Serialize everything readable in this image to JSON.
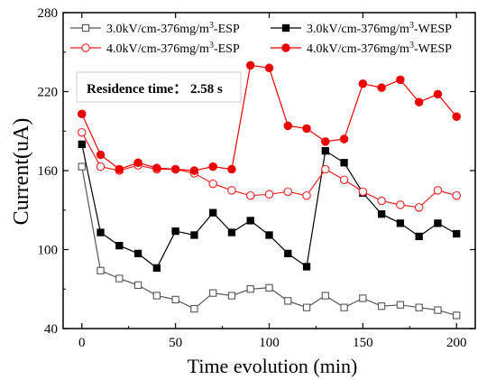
{
  "chart_data": {
    "type": "line",
    "xlabel": "Time evolution (min)",
    "ylabel": "Current(uA)",
    "xlim": [
      -10,
      210
    ],
    "ylim": [
      40,
      280
    ],
    "xticks": [
      0,
      50,
      100,
      150,
      200
    ],
    "yticks": [
      40,
      100,
      160,
      220,
      280
    ],
    "legend_position": "top",
    "annotation": "Residence time： 2.58 s",
    "series": [
      {
        "legend_parts": [
          "3.0kV/cm-376mg/m",
          "3",
          "-ESP"
        ],
        "color": "#555555",
        "marker": "square",
        "filled": false,
        "x": [
          0,
          10,
          20,
          30,
          40,
          50,
          60,
          70,
          80,
          90,
          100,
          110,
          120,
          130,
          140,
          150,
          160,
          170,
          180,
          190,
          200
        ],
        "y": [
          163,
          84,
          78,
          73,
          65,
          62,
          55,
          67,
          65,
          70,
          71,
          61,
          56,
          65,
          56,
          63,
          57,
          58,
          56,
          54,
          50
        ]
      },
      {
        "legend_parts": [
          "3.0kV/cm-376mg/m",
          "3",
          "-WESP"
        ],
        "color": "#000000",
        "marker": "square",
        "filled": true,
        "x": [
          0,
          10,
          20,
          30,
          40,
          50,
          60,
          70,
          80,
          90,
          100,
          110,
          120,
          130,
          140,
          150,
          160,
          170,
          180,
          190,
          200
        ],
        "y": [
          180,
          113,
          103,
          97,
          86,
          114,
          111,
          128,
          113,
          122,
          111,
          97,
          87,
          175,
          166,
          143,
          127,
          120,
          110,
          120,
          112
        ]
      },
      {
        "legend_parts": [
          "4.0kV/cm-376mg/m",
          "3",
          "-ESP"
        ],
        "color": "#ee2222",
        "marker": "circle",
        "filled": false,
        "x": [
          0,
          10,
          20,
          30,
          40,
          50,
          60,
          70,
          80,
          90,
          100,
          110,
          120,
          130,
          140,
          150,
          160,
          170,
          180,
          190,
          200
        ],
        "y": [
          189,
          163,
          160,
          164,
          161,
          161,
          158,
          150,
          145,
          141,
          142,
          144,
          141,
          161,
          153,
          144,
          137,
          134,
          132,
          145,
          141
        ]
      },
      {
        "legend_parts": [
          "4.0kV/cm-376mg/m",
          "3",
          "-WESP"
        ],
        "color": "#ee0000",
        "marker": "circle",
        "filled": true,
        "x": [
          0,
          10,
          20,
          30,
          40,
          50,
          60,
          70,
          80,
          90,
          100,
          110,
          120,
          130,
          140,
          150,
          160,
          170,
          180,
          190,
          200
        ],
        "y": [
          203,
          172,
          161,
          166,
          162,
          161,
          160,
          163,
          161,
          240,
          238,
          194,
          192,
          182,
          184,
          226,
          223,
          229,
          212,
          218,
          201
        ]
      }
    ]
  }
}
